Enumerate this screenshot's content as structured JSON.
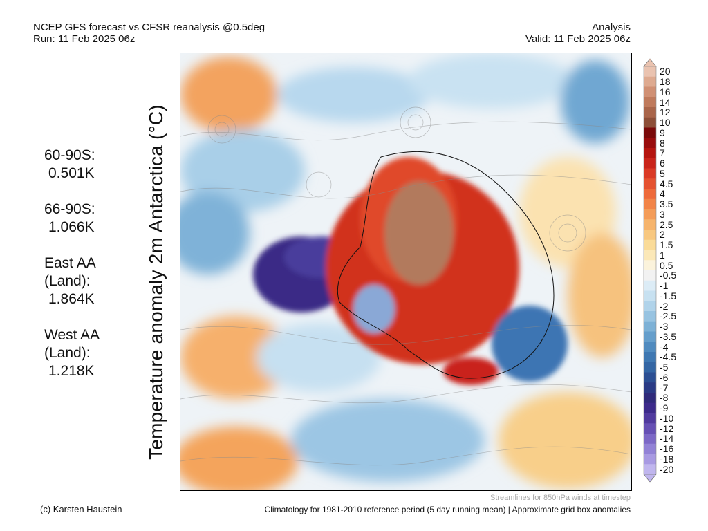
{
  "header": {
    "title_line1": "NCEP GFS forecast vs CFSR reanalysis @0.5deg",
    "title_line2": "Run: 11 Feb 2025 06z",
    "right_line1": "Analysis",
    "right_line2": "Valid: 11 Feb 2025 06z"
  },
  "y_axis_label": "Temperature anomaly 2m Antarctica (°C)",
  "stats": [
    {
      "label_lines": [
        "60-90S:"
      ],
      "value": "0.501K"
    },
    {
      "label_lines": [
        "66-90S:"
      ],
      "value": "1.066K"
    },
    {
      "label_lines": [
        "East AA",
        "(Land):"
      ],
      "value": "1.864K"
    },
    {
      "label_lines": [
        "West AA",
        "(Land):"
      ],
      "value": "1.218K"
    }
  ],
  "colorbar": {
    "labels": [
      "20",
      "18",
      "16",
      "14",
      "12",
      "10",
      "9",
      "8",
      "7",
      "6",
      "5",
      "4.5",
      "4",
      "3.5",
      "3",
      "2.5",
      "2",
      "1.5",
      "1",
      "0.5",
      "-0.5",
      "-1",
      "-1.5",
      "-2",
      "-2.5",
      "-3",
      "-3.5",
      "-4",
      "-4.5",
      "-5",
      "-6",
      "-7",
      "-8",
      "-9",
      "-10",
      "-12",
      "-14",
      "-16",
      "-18",
      "-20"
    ],
    "colors": [
      "#eac3b0",
      "#deaa90",
      "#d09074",
      "#bf7a5c",
      "#a9654a",
      "#8d4f38",
      "#7a0a0a",
      "#990d0d",
      "#b5150f",
      "#c9241a",
      "#da3a25",
      "#e55230",
      "#ee6a3a",
      "#f28448",
      "#f49c58",
      "#f6b46c",
      "#f8c880",
      "#fadb98",
      "#fbe8b8",
      "#fbf3dc",
      "#f2f2f2",
      "#dcecf6",
      "#c7e1f1",
      "#b0d3ea",
      "#97c3e1",
      "#7db1d6",
      "#659ecb",
      "#508bbf",
      "#3f78b2",
      "#3466a4",
      "#2c4f93",
      "#2a3a85",
      "#2f2a7a",
      "#3c2a8a",
      "#503a9e",
      "#6650b4",
      "#7c68c6",
      "#9282d6",
      "#a89ae2",
      "#c0b6ee"
    ]
  },
  "footer": {
    "streamlines_note": "Streamlines for 850hPa winds at timestep",
    "copyright": "(c) Karsten Haustein",
    "climatology_note": "Climatology for 1981-2010 reference period (5 day running mean) | Approximate grid box anomalies"
  }
}
